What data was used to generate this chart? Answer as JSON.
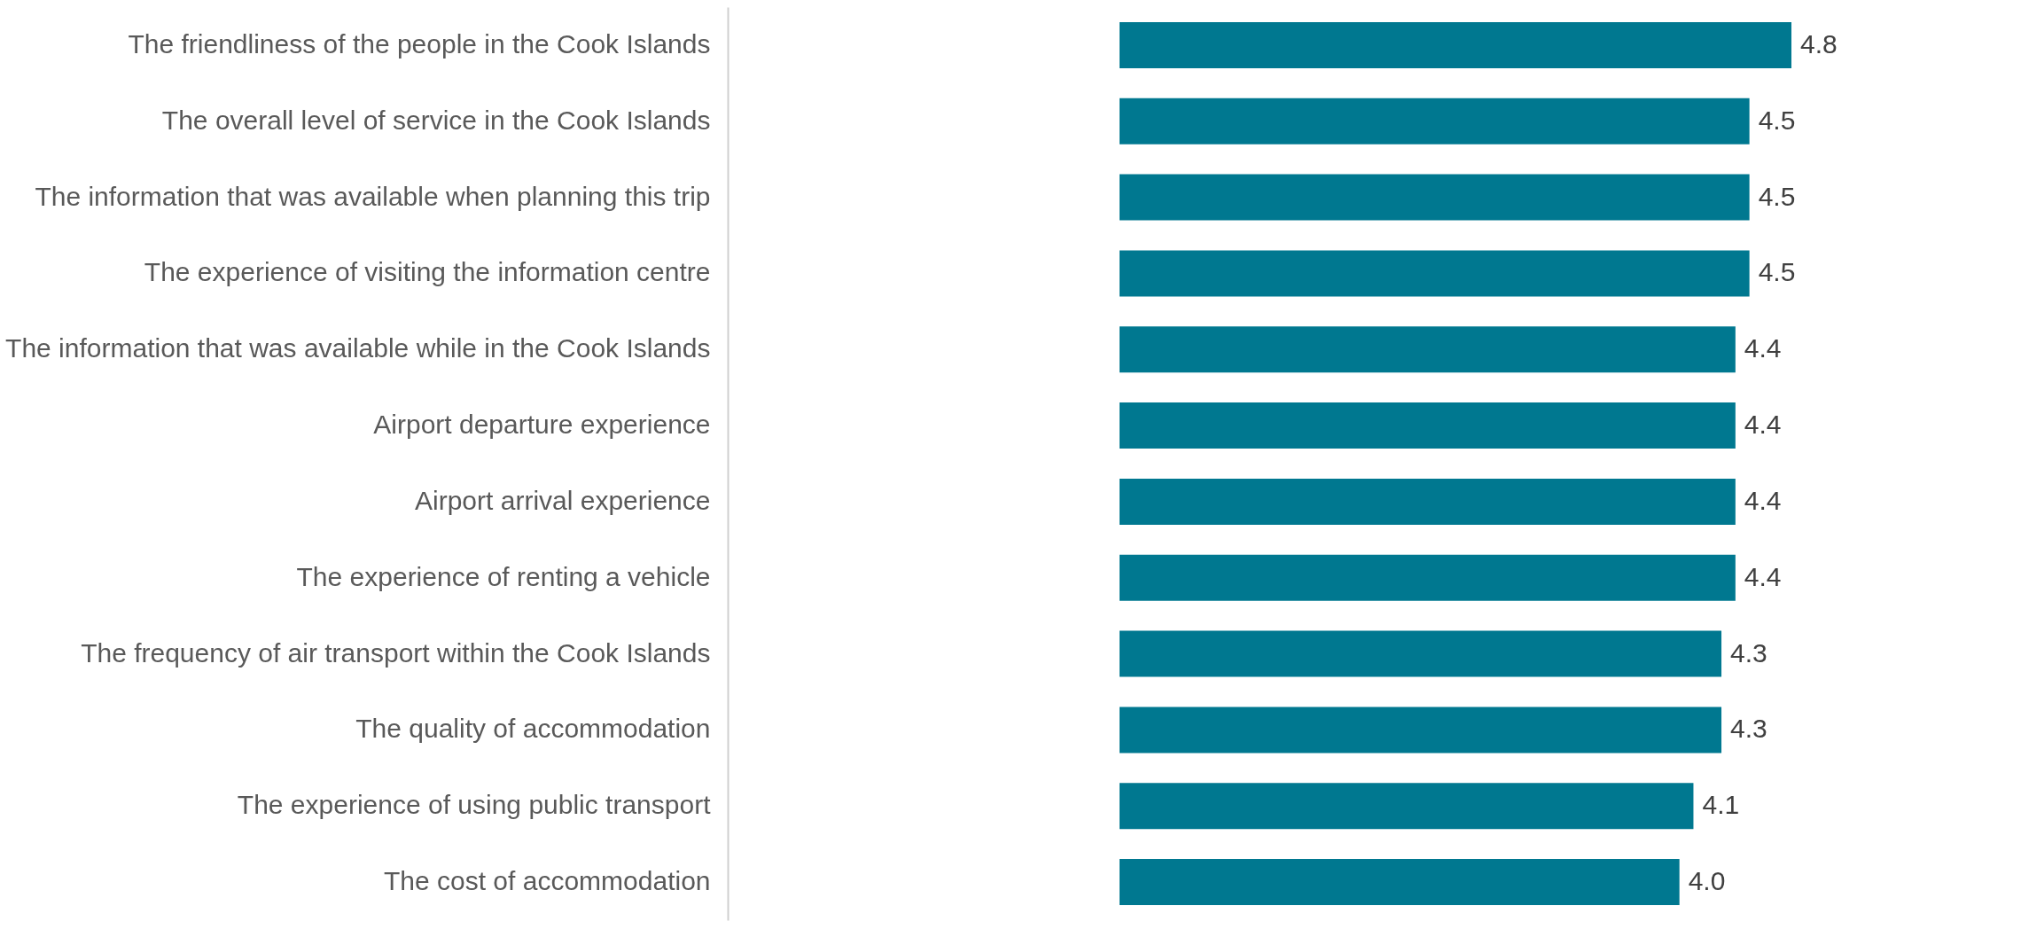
{
  "chart_data": {
    "type": "bar",
    "orientation": "horizontal",
    "categories": [
      "The friendliness of the people in the Cook Islands",
      "The overall level of service in the Cook Islands",
      "The information that was available when planning this trip",
      "The experience of visiting the information centre",
      "The information that was available while in the Cook Islands",
      "Airport departure experience",
      "Airport arrival experience",
      "The experience of renting a vehicle",
      "The frequency of air transport within the Cook Islands",
      "The quality of accommodation",
      "The experience of using public transport",
      "The cost of accommodation"
    ],
    "values": [
      4.8,
      4.5,
      4.5,
      4.5,
      4.4,
      4.4,
      4.4,
      4.4,
      4.3,
      4.3,
      4.1,
      4.0
    ],
    "value_labels": [
      "4.8",
      "4.5",
      "4.5",
      "4.5",
      "4.4",
      "4.4",
      "4.4",
      "4.4",
      "4.3",
      "4.3",
      "4.1",
      "4.0"
    ],
    "color": "#007890"
  }
}
